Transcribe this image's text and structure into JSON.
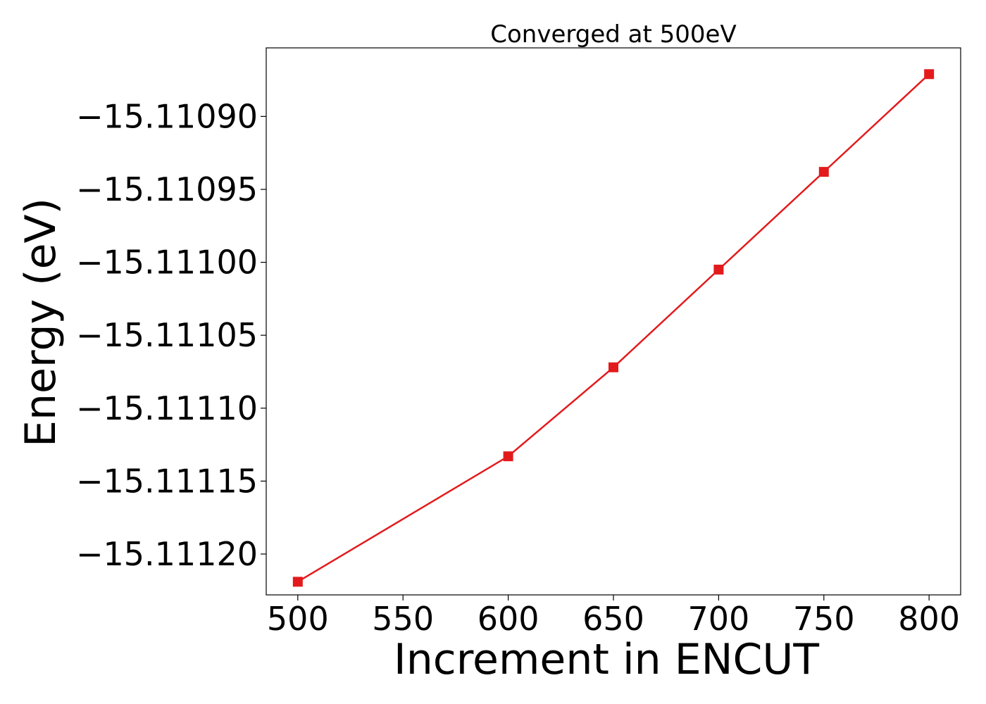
{
  "chart_data": {
    "type": "line",
    "title": "Converged at 500eV",
    "xlabel": "Increment in ENCUT",
    "ylabel": "Energy (eV)",
    "x": [
      500,
      600,
      650,
      700,
      750,
      800
    ],
    "series": [
      {
        "values": [
          -15.111219,
          -15.111133,
          -15.111072,
          -15.111005,
          -15.110938,
          -15.110871
        ],
        "color": "#e31a1c",
        "marker": "square"
      }
    ],
    "xlim": [
      485,
      815
    ],
    "ylim": [
      -15.111228,
      -15.110853
    ],
    "xticks": [
      500,
      550,
      600,
      650,
      700,
      750,
      800
    ],
    "xtick_labels": [
      "500",
      "550",
      "600",
      "650",
      "700",
      "750",
      "800"
    ],
    "yticks": [
      -15.1112,
      -15.11115,
      -15.1111,
      -15.11105,
      -15.111,
      -15.11095,
      -15.1109
    ],
    "ytick_labels": [
      "−15.11120",
      "−15.11115",
      "−15.11110",
      "−15.11105",
      "−15.11100",
      "−15.11095",
      "−15.11090"
    ],
    "grid": false,
    "legend": "none"
  }
}
